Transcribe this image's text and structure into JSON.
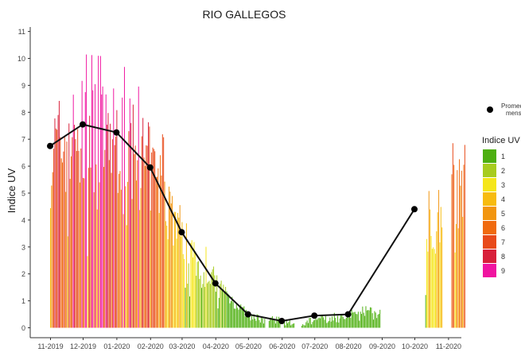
{
  "chart_data": {
    "type": "bar",
    "title": "RIO GALLEGOS",
    "xlabel": "",
    "ylabel": "Indice UV",
    "ylim": [
      -0.3,
      11.2
    ],
    "y_ticks": [
      0,
      1,
      2,
      3,
      4,
      5,
      6,
      7,
      8,
      9,
      10,
      11
    ],
    "x_ticks": [
      "11-2019",
      "12-2019",
      "01-2020",
      "02-2020",
      "03-2020",
      "04-2020",
      "05-2020",
      "06-2020",
      "07-2020",
      "08-2020",
      "09-2020",
      "10-2020",
      "11-2020"
    ],
    "grid": false,
    "daily_series": {
      "name": "Indice UV",
      "segments": [
        {
          "start": "2019-11-01",
          "days": 304,
          "anchors": [
            [
              0,
              6.8
            ],
            [
              10,
              7.3
            ],
            [
              31,
              7.6
            ],
            [
              62,
              7.5
            ],
            [
              93,
              6.2
            ],
            [
              110,
              4.8
            ],
            [
              122,
              3.6
            ],
            [
              140,
              2.4
            ],
            [
              152,
              1.8
            ],
            [
              170,
              1.0
            ],
            [
              182,
              0.5
            ],
            [
              200,
              0.3
            ],
            [
              213,
              0.25
            ],
            [
              229,
              0.15
            ],
            [
              244,
              0.4
            ],
            [
              260,
              0.4
            ],
            [
              275,
              0.55
            ],
            [
              290,
              0.6
            ],
            [
              303,
              0.5
            ]
          ],
          "gaps": [
            [
              198,
              200
            ],
            [
              212,
              214
            ],
            [
              225,
              230
            ]
          ]
        },
        {
          "start": "2020-10-11",
          "days": 37,
          "anchors": [
            [
              0,
              1.8
            ],
            [
              3,
              3.8
            ],
            [
              8,
              4.4
            ],
            [
              14,
              4.7
            ],
            [
              21,
              4.9
            ],
            [
              28,
              5.3
            ],
            [
              36,
              6.0
            ]
          ],
          "gaps": [
            [
              16,
              23
            ]
          ]
        }
      ]
    },
    "monthly_mean": {
      "name": "Promedio mensual",
      "x": [
        "2019-11-01",
        "2019-12-01",
        "2020-01-01",
        "2020-02-01",
        "2020-03-01",
        "2020-04-01",
        "2020-05-01",
        "2020-06-01",
        "2020-07-01",
        "2020-08-01",
        "2020-10-01"
      ],
      "y": [
        6.75,
        7.55,
        7.25,
        5.95,
        3.55,
        1.65,
        0.5,
        0.25,
        0.45,
        0.5,
        4.4
      ]
    },
    "legend": {
      "position": "right",
      "mean_label": "Promedio mensual",
      "title": "Indice UV",
      "levels": [
        {
          "label": "1",
          "color": "#4DAF10"
        },
        {
          "label": "2",
          "color": "#A7CC1E"
        },
        {
          "label": "3",
          "color": "#F5E61A"
        },
        {
          "label": "4",
          "color": "#F7BB10"
        },
        {
          "label": "5",
          "color": "#F2950E"
        },
        {
          "label": "6",
          "color": "#F06A0E"
        },
        {
          "label": "7",
          "color": "#E84A1A"
        },
        {
          "label": "8",
          "color": "#D8203A"
        },
        {
          "label": "9",
          "color": "#F014A0"
        }
      ]
    }
  }
}
